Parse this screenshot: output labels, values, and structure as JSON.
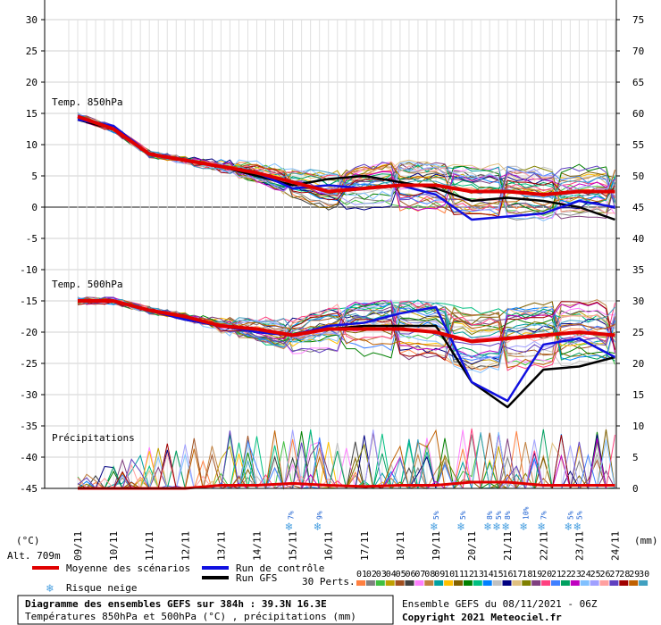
{
  "chart_data": {
    "type": "line",
    "title": "Diagramme des ensembles GEFS sur 384h : 39.3N 16.3E",
    "subtitle": "Températures 850hPa et 500hPa (°C) , précipitations (mm)",
    "run_info": "Ensemble GEFS du 08/11/2021 - 06Z",
    "copyright": "Copyright 2021 Meteociel.fr",
    "altitude": "Alt. 709m",
    "left_axis_unit": "(°C)",
    "right_axis_unit": "(mm)",
    "y_left_ticks": [
      30,
      25,
      20,
      15,
      10,
      5,
      0,
      -5,
      -10,
      -15,
      -20,
      -25,
      -30,
      -35,
      -40,
      -45
    ],
    "y_right_ticks": [
      75,
      70,
      65,
      60,
      55,
      50,
      45,
      40,
      35,
      30,
      25,
      20,
      15,
      10,
      5,
      0
    ],
    "ylim_left": [
      -45,
      30
    ],
    "dates": [
      "09/11",
      "10/11",
      "11/11",
      "12/11",
      "13/11",
      "14/11",
      "15/11",
      "16/11",
      "17/11",
      "18/11",
      "19/11",
      "20/11",
      "21/11",
      "22/11",
      "23/11",
      "24/11"
    ],
    "sections": [
      "Temp. 850hPa",
      "Temp. 500hPa",
      "Précipitations"
    ],
    "t850_mean": [
      14.5,
      12.5,
      8.5,
      7.5,
      6.5,
      5.5,
      4,
      2.5,
      3,
      3.5,
      3.5,
      2.5,
      2.5,
      2,
      2.5,
      2.5
    ],
    "t850_control": [
      14,
      13,
      8.5,
      7.5,
      6.5,
      5.5,
      3,
      3.5,
      3,
      3.5,
      2,
      -2,
      -1.5,
      -1,
      1,
      0
    ],
    "t850_gfs": [
      14,
      12.5,
      8.5,
      7.5,
      6.5,
      5,
      3.5,
      4.5,
      5,
      4,
      3,
      1,
      1.5,
      1,
      0,
      -2
    ],
    "t500_mean": [
      -15,
      -15,
      -16.5,
      -17.5,
      -19,
      -19.5,
      -20.5,
      -19.5,
      -19.5,
      -19.5,
      -20,
      -21.5,
      -21,
      -20.5,
      -20,
      -20.5
    ],
    "t500_control": [
      -15,
      -15,
      -16.5,
      -18,
      -19,
      -20,
      -20.5,
      -19,
      -18.5,
      -17,
      -16,
      -28,
      -31,
      -22,
      -21,
      -24
    ],
    "t500_gfs": [
      -15,
      -15,
      -16.5,
      -18,
      -19,
      -20,
      -20.5,
      -19.5,
      -19,
      -19,
      -19,
      -28,
      -32,
      -26,
      -25.5,
      -24
    ],
    "precip_mean_mm": [
      0,
      0,
      0,
      0,
      0.5,
      0.5,
      0.8,
      0.5,
      0.3,
      0.5,
      0.5,
      1,
      1,
      0.5,
      0.5,
      0.5
    ],
    "snow_risk": [
      {
        "date_index": 5.95,
        "label": "7%"
      },
      {
        "date_index": 6.75,
        "label": "9%"
      },
      {
        "date_index": 10.0,
        "label": "5%"
      },
      {
        "date_index": 10.75,
        "label": "5%"
      },
      {
        "date_index": 11.5,
        "label": "8%"
      },
      {
        "date_index": 11.75,
        "label": "5%"
      },
      {
        "date_index": 12.0,
        "label": "8%"
      },
      {
        "date_index": 12.5,
        "label": "10%"
      },
      {
        "date_index": 13.0,
        "label": "7%"
      },
      {
        "date_index": 13.75,
        "label": "5%"
      },
      {
        "date_index": 14.0,
        "label": "5%"
      }
    ],
    "legend": {
      "mean": "Moyenne des scénarios",
      "control": "Run de contrôle",
      "gfs": "Run GFS",
      "snow": "Risque neige",
      "perts": "30 Perts."
    },
    "colors": {
      "mean": "#e00000",
      "control": "#1010e0",
      "gfs": "#000000"
    },
    "members": [
      "01",
      "02",
      "03",
      "04",
      "05",
      "06",
      "07",
      "08",
      "09",
      "10",
      "11",
      "12",
      "13",
      "14",
      "15",
      "16",
      "17",
      "18",
      "19",
      "20",
      "21",
      "22",
      "23",
      "24",
      "25",
      "26",
      "27",
      "28",
      "29",
      "30"
    ],
    "member_colors": [
      "#ff8040",
      "#808080",
      "#40c040",
      "#c0a000",
      "#a05020",
      "#404040",
      "#ff80ff",
      "#c08040",
      "#00a0a0",
      "#ffc000",
      "#806000",
      "#008000",
      "#00c080",
      "#0080ff",
      "#c0c0c0",
      "#000080",
      "#e0c080",
      "#808000",
      "#804080",
      "#ff4080",
      "#4080ff",
      "#00a060",
      "#c000c0",
      "#80c0ff",
      "#a0a0ff",
      "#ffa0a0",
      "#6040c0",
      "#a00000",
      "#c06000",
      "#40a0c0"
    ]
  }
}
